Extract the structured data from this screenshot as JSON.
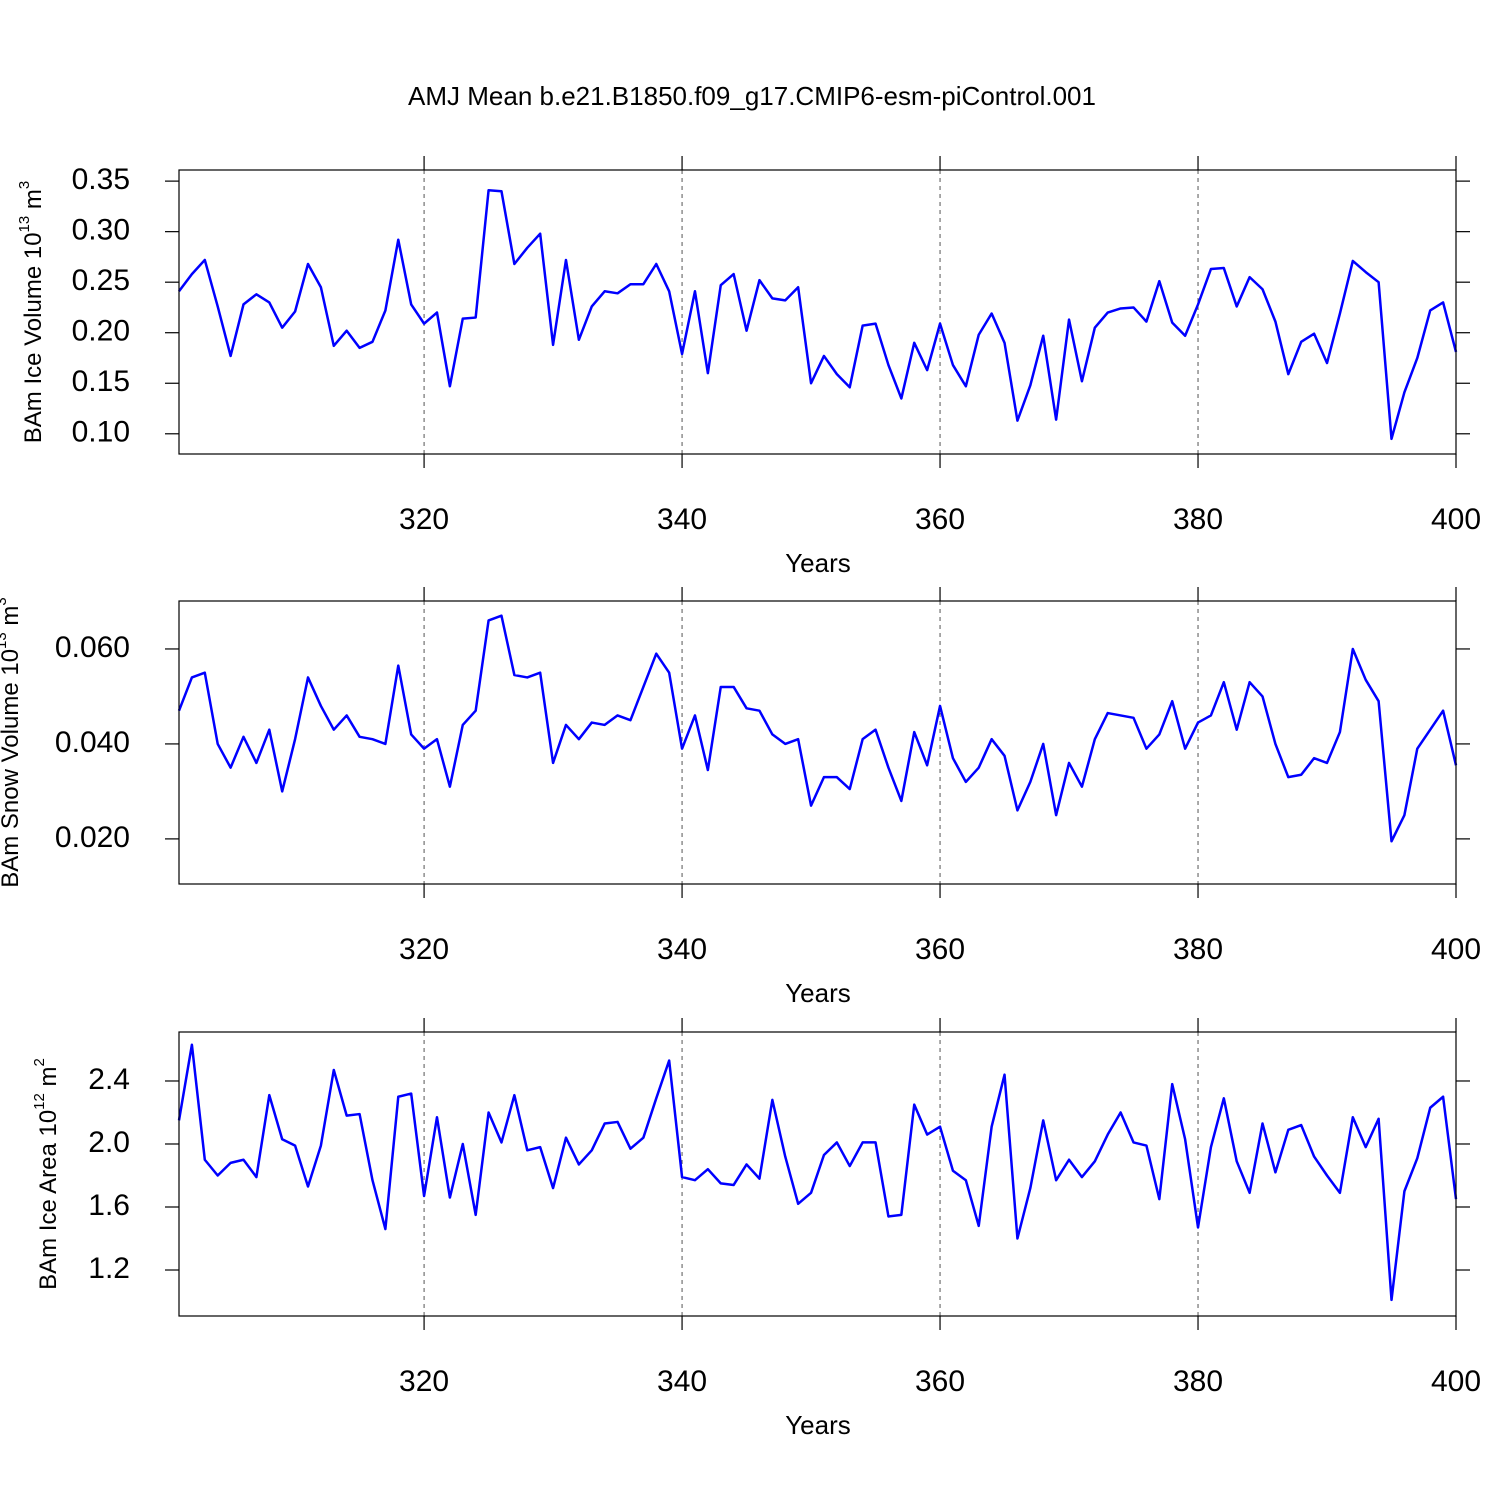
{
  "chart_data": [
    {
      "type": "line",
      "title": "AMJ Mean b.e21.B1850.f09_g17.CMIP6-esm-piControl.001",
      "xlabel": "Years",
      "ylabel": {
        "text": "BAm Ice Volume 10",
        "exponent": "13",
        "unit": "m",
        "unit_exponent": "3"
      },
      "color": "#0000ff",
      "grid": true,
      "xlim": [
        301,
        400
      ],
      "xticks": [
        320,
        340,
        360,
        380,
        400
      ],
      "ylim": [
        0.08,
        0.361
      ],
      "yticks": [
        0.35,
        {
          "value": 0.3,
          "label": "0.30"
        },
        0.25,
        {
          "value": 0.2,
          "label": "0.20"
        },
        0.15,
        {
          "value": 0.1,
          "label": "0.10"
        }
      ],
      "x": [
        301,
        302,
        303,
        304,
        305,
        306,
        307,
        308,
        309,
        310,
        311,
        312,
        313,
        314,
        315,
        316,
        317,
        318,
        319,
        320,
        321,
        322,
        323,
        324,
        325,
        326,
        327,
        328,
        329,
        330,
        331,
        332,
        333,
        334,
        335,
        336,
        337,
        338,
        339,
        340,
        341,
        342,
        343,
        344,
        345,
        346,
        347,
        348,
        349,
        350,
        351,
        352,
        353,
        354,
        355,
        356,
        357,
        358,
        359,
        360,
        361,
        362,
        363,
        364,
        365,
        366,
        367,
        368,
        369,
        370,
        371,
        372,
        373,
        374,
        375,
        376,
        377,
        378,
        379,
        380,
        381,
        382,
        383,
        384,
        385,
        386,
        387,
        388,
        389,
        390,
        391,
        392,
        393,
        394,
        395,
        396,
        397,
        398,
        399,
        400
      ],
      "values": [
        0.241,
        0.258,
        0.272,
        0.226,
        0.177,
        0.228,
        0.238,
        0.23,
        0.205,
        0.221,
        0.268,
        0.245,
        0.187,
        0.202,
        0.185,
        0.191,
        0.222,
        0.292,
        0.228,
        0.209,
        0.22,
        0.147,
        0.214,
        0.215,
        0.341,
        0.34,
        0.268,
        0.284,
        0.298,
        0.188,
        0.272,
        0.193,
        0.226,
        0.241,
        0.239,
        0.248,
        0.248,
        0.268,
        0.241,
        0.179,
        0.241,
        0.16,
        0.247,
        0.258,
        0.202,
        0.252,
        0.234,
        0.232,
        0.245,
        0.15,
        0.177,
        0.159,
        0.146,
        0.207,
        0.209,
        0.168,
        0.135,
        0.19,
        0.163,
        0.209,
        0.168,
        0.147,
        0.198,
        0.219,
        0.19,
        0.113,
        0.148,
        0.197,
        0.114,
        0.213,
        0.152,
        0.205,
        0.22,
        0.224,
        0.225,
        0.211,
        0.251,
        0.21,
        0.197,
        0.228,
        0.263,
        0.264,
        0.226,
        0.255,
        0.243,
        0.211,
        0.159,
        0.191,
        0.199,
        0.17,
        0.219,
        0.271,
        0.26,
        0.25,
        0.095,
        0.141,
        0.175,
        0.222,
        0.23,
        0.181
      ]
    },
    {
      "type": "line",
      "xlabel": "Years",
      "ylabel": {
        "text": "BAm Snow Volume 10",
        "exponent": "13",
        "unit": "m",
        "unit_exponent": "3"
      },
      "color": "#0000ff",
      "grid": true,
      "xlim": [
        301,
        400
      ],
      "xticks": [
        320,
        340,
        360,
        380,
        400
      ],
      "ylim": [
        0.0105,
        0.0701
      ],
      "yticks": [
        {
          "value": 0.06,
          "label": "0.060"
        },
        {
          "value": 0.04,
          "label": "0.040"
        },
        {
          "value": 0.02,
          "label": "0.020"
        }
      ],
      "x": [
        301,
        302,
        303,
        304,
        305,
        306,
        307,
        308,
        309,
        310,
        311,
        312,
        313,
        314,
        315,
        316,
        317,
        318,
        319,
        320,
        321,
        322,
        323,
        324,
        325,
        326,
        327,
        328,
        329,
        330,
        331,
        332,
        333,
        334,
        335,
        336,
        337,
        338,
        339,
        340,
        341,
        342,
        343,
        344,
        345,
        346,
        347,
        348,
        349,
        350,
        351,
        352,
        353,
        354,
        355,
        356,
        357,
        358,
        359,
        360,
        361,
        362,
        363,
        364,
        365,
        366,
        367,
        368,
        369,
        370,
        371,
        372,
        373,
        374,
        375,
        376,
        377,
        378,
        379,
        380,
        381,
        382,
        383,
        384,
        385,
        386,
        387,
        388,
        389,
        390,
        391,
        392,
        393,
        394,
        395,
        396,
        397,
        398,
        399,
        400
      ],
      "values": [
        0.047,
        0.054,
        0.055,
        0.04,
        0.035,
        0.0415,
        0.036,
        0.043,
        0.03,
        0.041,
        0.054,
        0.048,
        0.043,
        0.046,
        0.0415,
        0.041,
        0.04,
        0.0565,
        0.042,
        0.039,
        0.041,
        0.031,
        0.044,
        0.047,
        0.066,
        0.067,
        0.0545,
        0.054,
        0.055,
        0.036,
        0.044,
        0.041,
        0.0445,
        0.044,
        0.046,
        0.045,
        0.052,
        0.059,
        0.055,
        0.039,
        0.046,
        0.0345,
        0.052,
        0.052,
        0.0475,
        0.047,
        0.042,
        0.04,
        0.041,
        0.027,
        0.033,
        0.033,
        0.0305,
        0.041,
        0.043,
        0.035,
        0.028,
        0.0425,
        0.0355,
        0.048,
        0.037,
        0.032,
        0.035,
        0.041,
        0.0375,
        0.026,
        0.032,
        0.04,
        0.025,
        0.036,
        0.031,
        0.041,
        0.0465,
        0.046,
        0.0455,
        0.039,
        0.042,
        0.049,
        0.039,
        0.0445,
        0.046,
        0.053,
        0.043,
        0.053,
        0.05,
        0.04,
        0.033,
        0.0335,
        0.037,
        0.036,
        0.0425,
        0.06,
        0.0535,
        0.049,
        0.0195,
        0.025,
        0.039,
        0.043,
        0.047,
        0.0355
      ]
    },
    {
      "type": "line",
      "xlabel": "Years",
      "ylabel": {
        "text": "BAm Ice Area 10",
        "exponent": "12",
        "unit": "m",
        "unit_exponent": "2"
      },
      "color": "#0000ff",
      "grid": true,
      "xlim": [
        301,
        400
      ],
      "xticks": [
        320,
        340,
        360,
        380,
        400
      ],
      "ylim": [
        0.908,
        2.711
      ],
      "yticks": [
        2.4,
        {
          "value": 2,
          "label": "2.0"
        },
        1.6,
        1.2
      ],
      "x": [
        301,
        302,
        303,
        304,
        305,
        306,
        307,
        308,
        309,
        310,
        311,
        312,
        313,
        314,
        315,
        316,
        317,
        318,
        319,
        320,
        321,
        322,
        323,
        324,
        325,
        326,
        327,
        328,
        329,
        330,
        331,
        332,
        333,
        334,
        335,
        336,
        337,
        338,
        339,
        340,
        341,
        342,
        343,
        344,
        345,
        346,
        347,
        348,
        349,
        350,
        351,
        352,
        353,
        354,
        355,
        356,
        357,
        358,
        359,
        360,
        361,
        362,
        363,
        364,
        365,
        366,
        367,
        368,
        369,
        370,
        371,
        372,
        373,
        374,
        375,
        376,
        377,
        378,
        379,
        380,
        381,
        382,
        383,
        384,
        385,
        386,
        387,
        388,
        389,
        390,
        391,
        392,
        393,
        394,
        395,
        396,
        397,
        398,
        399,
        400
      ],
      "values": [
        2.15,
        2.63,
        1.9,
        1.8,
        1.88,
        1.9,
        1.79,
        2.31,
        2.03,
        1.99,
        1.73,
        1.99,
        2.47,
        2.18,
        2.19,
        1.77,
        1.46,
        2.3,
        2.32,
        1.67,
        2.17,
        1.66,
        2.0,
        1.55,
        2.2,
        2.01,
        2.31,
        1.96,
        1.98,
        1.72,
        2.04,
        1.87,
        1.96,
        2.13,
        2.14,
        1.97,
        2.04,
        2.29,
        2.53,
        1.79,
        1.77,
        1.84,
        1.75,
        1.74,
        1.87,
        1.78,
        2.28,
        1.92,
        1.62,
        1.69,
        1.93,
        2.01,
        1.86,
        2.01,
        2.01,
        1.54,
        1.55,
        2.25,
        2.06,
        2.11,
        1.83,
        1.77,
        1.48,
        2.11,
        2.44,
        1.4,
        1.72,
        2.15,
        1.77,
        1.9,
        1.79,
        1.89,
        2.06,
        2.2,
        2.01,
        1.99,
        1.65,
        2.38,
        2.03,
        1.47,
        1.98,
        2.29,
        1.89,
        1.69,
        2.13,
        1.82,
        2.09,
        2.12,
        1.92,
        1.8,
        1.69,
        2.17,
        1.98,
        2.16,
        1.01,
        1.7,
        1.91,
        2.23,
        2.3,
        1.65
      ]
    }
  ]
}
